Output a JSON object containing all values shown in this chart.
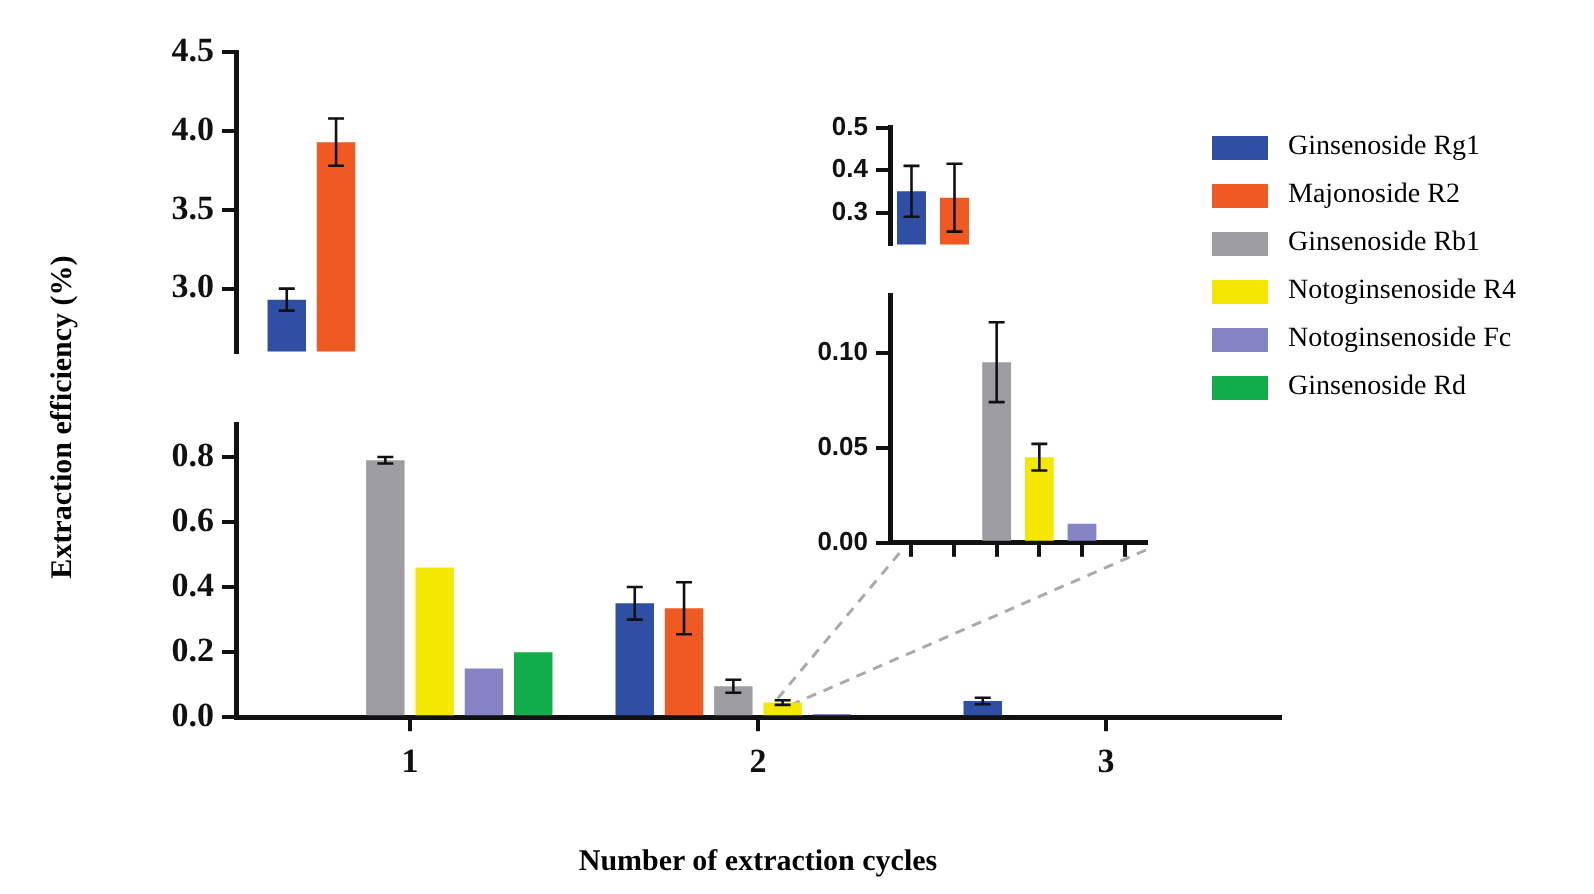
{
  "chart_data": [
    {
      "type": "bar",
      "categories": [
        "1",
        "2",
        "3"
      ],
      "ylim": [
        2.6,
        4.5
      ],
      "yticks": [
        {
          "value": 3,
          "label": "3.0"
        },
        3.5,
        {
          "value": 4,
          "label": "4.0"
        },
        4.5
      ],
      "tick_labels": "y",
      "grid": false,
      "series": [
        {
          "color": "#2e4fa3",
          "values": [
            2.93,
            null,
            null
          ],
          "errors": [
            0.07,
            null,
            null
          ]
        },
        {
          "color": "#f05a22",
          "values": [
            3.93,
            null,
            null
          ],
          "errors": [
            0.15,
            null,
            null
          ]
        },
        {
          "color": "#9e9ea2",
          "values": [
            null,
            null,
            null
          ]
        },
        {
          "color": "#f5e800",
          "values": [
            null,
            null,
            null
          ]
        },
        {
          "color": "#8585c5",
          "values": [
            null,
            null,
            null
          ]
        },
        {
          "color": "#12ad4b",
          "values": [
            null,
            null,
            null
          ]
        }
      ]
    },
    {
      "type": "bar",
      "categories": [
        "1",
        "2",
        "3"
      ],
      "xlabel": "Number of extraction cycles",
      "ylabel": "Extraction efficiency (%)",
      "ylim": [
        0,
        0.9
      ],
      "yticks": [
        {
          "value": 0,
          "label": "0.0"
        },
        0.2,
        0.4,
        0.6,
        0.8
      ],
      "grid": false,
      "legend": "right",
      "series": [
        {
          "name": "Ginsenoside Rg1",
          "color": "#2e4fa3",
          "values": [
            null,
            0.35,
            0.05
          ],
          "errors": [
            null,
            0.05,
            0.01
          ]
        },
        {
          "name": "Majonoside R2",
          "color": "#f05a22",
          "values": [
            null,
            0.335,
            0
          ],
          "errors": [
            null,
            0.08,
            null
          ]
        },
        {
          "name": "Ginsenoside Rb1",
          "color": "#9e9ea2",
          "values": [
            0.79,
            0.095,
            0
          ],
          "errors": [
            0.01,
            0.02,
            null
          ]
        },
        {
          "name": "Notoginsenoside R4",
          "color": "#f5e800",
          "values": [
            0.46,
            0.045,
            0
          ],
          "errors": [
            null,
            0.007,
            null
          ]
        },
        {
          "name": "Notoginsenoside Fc",
          "color": "#8585c5",
          "values": [
            0.15,
            0.01,
            0
          ]
        },
        {
          "name": "Ginsenoside Rd",
          "color": "#12ad4b",
          "values": [
            0.2,
            0,
            0
          ]
        }
      ]
    },
    {
      "type": "bar",
      "categories": [
        null,
        null
      ],
      "ylim": [
        0.225,
        0.5
      ],
      "yticks": [
        0.3,
        0.4,
        0.5
      ],
      "tick_labels": "y",
      "grid": false,
      "values": [
        0.35,
        0.335
      ],
      "colors": [
        "#2e4fa3",
        "#f05a22"
      ],
      "errors": [
        0.06,
        0.08
      ]
    },
    {
      "type": "bar",
      "categories": [
        null,
        null,
        null,
        null,
        null,
        null
      ],
      "ylim": [
        0,
        0.13
      ],
      "yticks": [
        {
          "value": 0,
          "label": "0.00"
        },
        {
          "value": 0.05,
          "label": "0.05"
        },
        {
          "value": 0.1,
          "label": "0.10"
        }
      ],
      "grid": false,
      "values": [
        null,
        null,
        0.095,
        0.045,
        0.01,
        0
      ],
      "colors": [
        "#2e4fa3",
        "#f05a22",
        "#9e9ea2",
        "#f5e800",
        "#8585c5",
        "#12ad4b"
      ],
      "errors": [
        null,
        null,
        0.021,
        0.007,
        null,
        null
      ]
    }
  ]
}
